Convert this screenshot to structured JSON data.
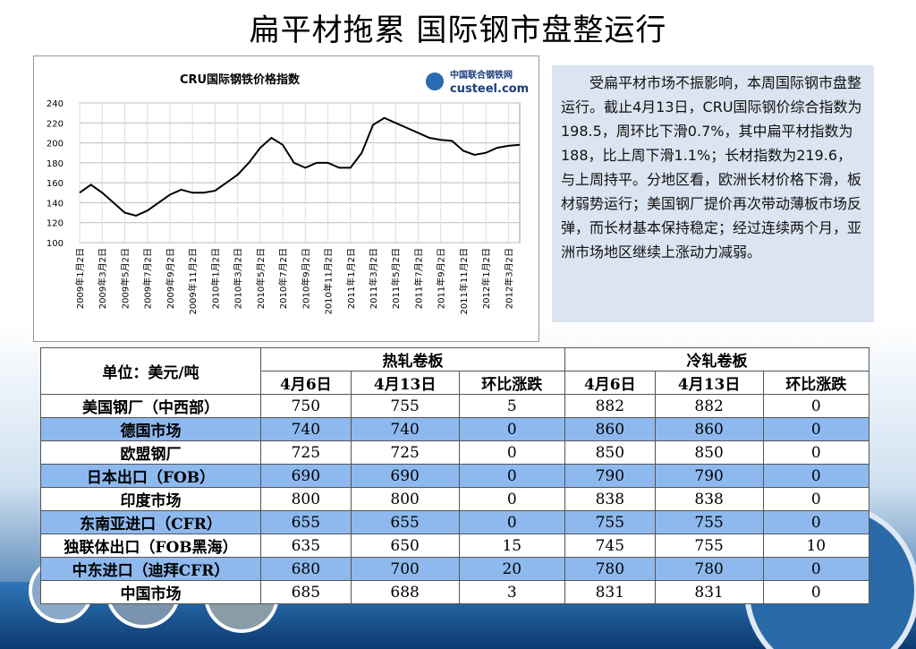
{
  "title": "扁平材拖累  国际钢市盘整运行",
  "chart_data": {
    "type": "line",
    "title": "CRU国际钢铁价格指数",
    "logo": [
      "中国联合钢铁网",
      "custeel.com"
    ],
    "categories": [
      "2009年1月2日",
      null,
      "2009年3月2日",
      null,
      "2009年5月2日",
      null,
      "2009年7月2日",
      null,
      "2009年9月2日",
      null,
      "2009年11月2日",
      null,
      "2010年1月2日",
      null,
      "2010年3月2日",
      null,
      "2010年5月2日",
      null,
      "2010年7月2日",
      null,
      "2010年9月2日",
      null,
      "2010年11月2日",
      null,
      "2011年1月2日",
      null,
      "2011年3月2日",
      null,
      "2011年5月2日",
      null,
      "2011年7月2日",
      null,
      "2011年9月2日",
      null,
      "2011年11月2日",
      null,
      "2012年1月2日",
      null,
      "2012年3月2日",
      null
    ],
    "values": [
      150,
      158,
      150,
      140,
      130,
      127,
      132,
      140,
      148,
      153,
      150,
      150,
      152,
      160,
      168,
      180,
      195,
      205,
      198,
      180,
      175,
      180,
      180,
      175,
      175,
      190,
      218,
      225,
      220,
      215,
      210,
      205,
      203,
      202,
      192,
      188,
      190,
      195,
      197,
      198
    ],
    "color": "#000000",
    "ylim": [
      100,
      240
    ],
    "yticks": [
      100,
      120,
      140,
      160,
      180,
      200,
      220,
      240
    ],
    "grid": true
  },
  "paragraph": "受扁平材市场不振影响，本周国际钢市盘整运行。截止4月13日，CRU国际钢价综合指数为198.5，周环比下滑0.7%，其中扁平材指数为188，比上周下滑1.1%；长材指数为219.6，与上周持平。分地区看，欧洲长材价格下滑，板材弱势运行；美国钢厂提价再次带动薄板市场反弹，而长材基本保持稳定；经过连续两个月，亚洲市场地区继续上涨动力减弱。",
  "table": {
    "unit": "单位：美元/吨",
    "groups": [
      "热轧卷板",
      "冷轧卷板"
    ],
    "columns": [
      "4月6日",
      "4月13日",
      "环比涨跌",
      "4月6日",
      "4月13日",
      "环比涨跌"
    ],
    "rows": [
      [
        "美国钢厂（中西部）",
        750,
        755,
        5,
        882,
        882,
        0
      ],
      [
        "德国市场",
        740,
        740,
        0,
        860,
        860,
        0
      ],
      [
        "欧盟钢厂",
        725,
        725,
        0,
        850,
        850,
        0
      ],
      [
        "日本出口（FOB）",
        690,
        690,
        0,
        790,
        790,
        0
      ],
      [
        "印度市场",
        800,
        800,
        0,
        838,
        838,
        0
      ],
      [
        "东南亚进口（CFR）",
        655,
        655,
        0,
        755,
        755,
        0
      ],
      [
        "独联体出口（FOB黑海）",
        635,
        650,
        15,
        745,
        755,
        10
      ],
      [
        "中东进口（迪拜CFR）",
        680,
        700,
        20,
        780,
        780,
        0
      ],
      [
        "中国市场",
        685,
        688,
        3,
        831,
        831,
        0
      ]
    ]
  }
}
